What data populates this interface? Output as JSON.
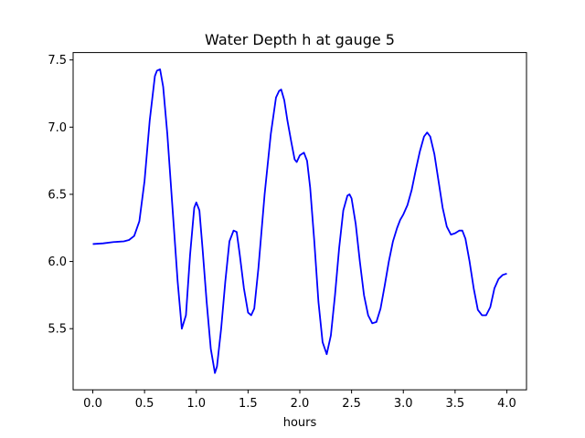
{
  "chart_data": {
    "type": "line",
    "title": "Water Depth h at gauge 5",
    "xlabel": "hours",
    "ylabel": "",
    "xlim": [
      -0.19,
      4.19
    ],
    "ylim": [
      5.045,
      7.555
    ],
    "xticks": [
      0.0,
      0.5,
      1.0,
      1.5,
      2.0,
      2.5,
      3.0,
      3.5,
      4.0
    ],
    "xtick_labels": [
      "0.0",
      "0.5",
      "1.0",
      "1.5",
      "2.0",
      "2.5",
      "3.0",
      "3.5",
      "4.0"
    ],
    "yticks": [
      5.5,
      6.0,
      6.5,
      7.0,
      7.5
    ],
    "ytick_labels": [
      "5.5",
      "6.0",
      "6.5",
      "7.0",
      "7.5"
    ],
    "grid": false,
    "legend": "none",
    "series": [
      {
        "color": "#0000ff",
        "x": [
          0.0,
          0.1,
          0.2,
          0.3,
          0.35,
          0.4,
          0.45,
          0.5,
          0.55,
          0.6,
          0.62,
          0.65,
          0.68,
          0.72,
          0.77,
          0.82,
          0.86,
          0.9,
          0.94,
          0.98,
          1.0,
          1.03,
          1.06,
          1.1,
          1.14,
          1.18,
          1.2,
          1.24,
          1.28,
          1.32,
          1.36,
          1.39,
          1.42,
          1.46,
          1.5,
          1.53,
          1.56,
          1.6,
          1.66,
          1.72,
          1.77,
          1.8,
          1.82,
          1.85,
          1.88,
          1.92,
          1.95,
          1.97,
          2.0,
          2.04,
          2.07,
          2.1,
          2.14,
          2.18,
          2.22,
          2.26,
          2.3,
          2.34,
          2.38,
          2.42,
          2.46,
          2.48,
          2.5,
          2.54,
          2.58,
          2.62,
          2.66,
          2.7,
          2.74,
          2.78,
          2.82,
          2.86,
          2.9,
          2.94,
          2.97,
          3.0,
          3.04,
          3.08,
          3.12,
          3.16,
          3.2,
          3.23,
          3.26,
          3.3,
          3.34,
          3.38,
          3.42,
          3.46,
          3.5,
          3.54,
          3.57,
          3.6,
          3.64,
          3.68,
          3.72,
          3.76,
          3.8,
          3.84,
          3.88,
          3.92,
          3.96,
          4.0
        ],
        "y": [
          6.13,
          6.135,
          6.145,
          6.15,
          6.16,
          6.19,
          6.3,
          6.6,
          7.05,
          7.38,
          7.42,
          7.43,
          7.3,
          6.95,
          6.4,
          5.85,
          5.5,
          5.6,
          6.05,
          6.4,
          6.44,
          6.38,
          6.1,
          5.7,
          5.35,
          5.17,
          5.22,
          5.5,
          5.85,
          6.15,
          6.23,
          6.22,
          6.05,
          5.8,
          5.62,
          5.6,
          5.65,
          5.95,
          6.5,
          6.95,
          7.22,
          7.27,
          7.28,
          7.2,
          7.05,
          6.88,
          6.76,
          6.74,
          6.79,
          6.81,
          6.75,
          6.55,
          6.15,
          5.7,
          5.4,
          5.31,
          5.45,
          5.75,
          6.1,
          6.38,
          6.49,
          6.5,
          6.47,
          6.28,
          6.0,
          5.75,
          5.6,
          5.54,
          5.55,
          5.65,
          5.82,
          6.0,
          6.15,
          6.25,
          6.31,
          6.35,
          6.42,
          6.53,
          6.68,
          6.82,
          6.93,
          6.96,
          6.93,
          6.8,
          6.6,
          6.4,
          6.26,
          6.2,
          6.21,
          6.23,
          6.23,
          6.17,
          6.0,
          5.8,
          5.64,
          5.6,
          5.6,
          5.66,
          5.8,
          5.87,
          5.9,
          5.91
        ]
      }
    ]
  }
}
